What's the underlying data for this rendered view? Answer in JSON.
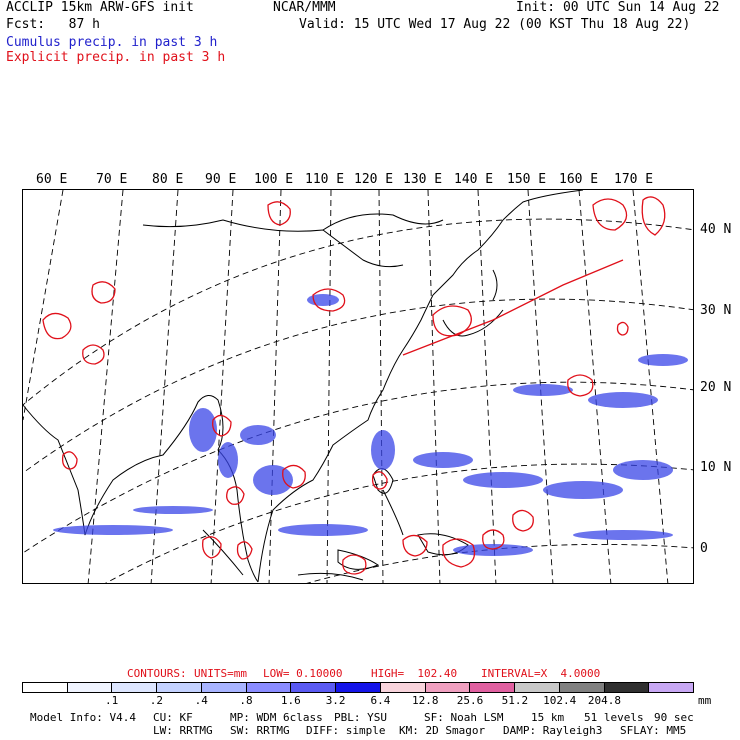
{
  "header": {
    "line1_left": "ACCLIP 15km ARW-GFS init",
    "line1_center": "NCAR/MMM",
    "line1_right": "Init: 00 UTC Sun 14 Aug 22",
    "line2_left": "Fcst:   87 h",
    "line2_right": "Valid: 15 UTC Wed 17 Aug 22 (00 KST Thu 18 Aug 22)",
    "legend_cumulus": "Cumulus precip. in past 3 h",
    "legend_explicit": "Explicit precip. in past 3 h"
  },
  "map": {
    "lon_labels": [
      "60 E",
      "70 E",
      "80 E",
      "90 E",
      "100 E",
      "110 E",
      "120 E",
      "130 E",
      "140 E",
      "150 E",
      "160 E",
      "170 E"
    ],
    "lat_labels": [
      "40 N",
      "30 N",
      "20 N",
      "10 N",
      "0"
    ]
  },
  "contour_info": {
    "contours": "CONTOURS:",
    "units": "UNITS=mm",
    "low": "LOW= 0.10000",
    "high": "HIGH=  102.40",
    "interval": "INTERVAL=X  4.0000"
  },
  "colorbar": {
    "labels": [
      ".1",
      ".2",
      ".4",
      ".8",
      "1.6",
      "3.2",
      "6.4",
      "12.8",
      "25.6",
      "51.2",
      "102.4",
      "204.8"
    ],
    "unit": "mm",
    "colors": [
      "#ffffff",
      "#f0f4ff",
      "#dde6ff",
      "#c4d2ff",
      "#a8b4ff",
      "#8a8cff",
      "#5a5af2",
      "#1414e8",
      "#f8d4dc",
      "#f0a0c0",
      "#e060a0",
      "#c8c8c8",
      "#808080",
      "#303030",
      "#c8a8f4"
    ]
  },
  "footer": {
    "line1": [
      "Model Info: V4.4",
      "CU: KF",
      "MP: WDM 6class",
      "PBL: YSU",
      "SF: Noah LSM",
      "15 km",
      "51 levels",
      "90 sec"
    ],
    "line2": [
      "LW: RRTMG",
      "SW: RRTMG",
      "DIFF: simple",
      "KM: 2D Smagor",
      "DAMP: Rayleigh3",
      "SFLAY: MM5"
    ]
  }
}
